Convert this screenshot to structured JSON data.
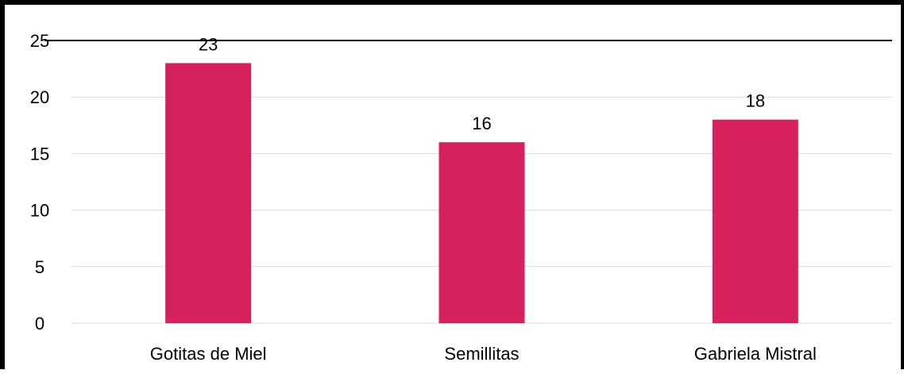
{
  "chart_data": {
    "type": "bar",
    "categories": [
      "Gotitas de Miel",
      "Semillitas",
      "Gabriela Mistral"
    ],
    "values": [
      23,
      16,
      18
    ],
    "data_labels": [
      "23",
      "16",
      "18"
    ],
    "ylim": [
      0,
      25
    ],
    "yticks": [
      "0",
      "5",
      "10",
      "15",
      "20",
      "25"
    ],
    "bar_color": "#D6215C",
    "grid": true,
    "legend": "none"
  }
}
